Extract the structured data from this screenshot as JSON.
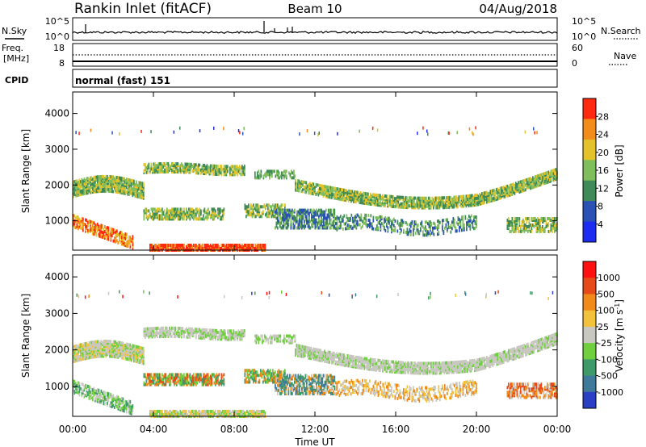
{
  "header": {
    "station": "Rankin Inlet (fitACF)",
    "beam": "Beam 10",
    "date": "04/Aug/2018"
  },
  "nsky_panel": {
    "left_label": "N.Sky",
    "right_label": "N.Search",
    "left_ticks": [
      "10^5",
      "10^0"
    ],
    "right_ticks": [
      "10^5",
      "10^0"
    ]
  },
  "freq_panel": {
    "left_label_1": "Freq.",
    "left_label_2": "[MHz]",
    "right_label": "Nave",
    "left_ticks": [
      "18",
      "8"
    ],
    "right_ticks": [
      "60",
      "0"
    ]
  },
  "cpid_panel": {
    "label": "CPID",
    "value": "normal (fast) 151"
  },
  "chart_data": [
    {
      "type": "heatmap",
      "parameter": "Power",
      "ylabel": "Slant Range [km]",
      "ylim": [
        180,
        4600
      ],
      "yticks": [
        "4000",
        "3000",
        "2000",
        "1000"
      ],
      "colorbar_label": "Power [dB]",
      "colorbar_ticks": [
        "28",
        "24",
        "20",
        "16",
        "12",
        "8",
        "4"
      ],
      "colorbar_range": [
        0,
        32
      ],
      "colors": [
        "#1e2bf0",
        "#2a52b5",
        "#3f8a56",
        "#7fbd5d",
        "#e3c22b",
        "#f28c1a",
        "#ff2a10"
      ],
      "xlim": [
        0,
        24
      ]
    },
    {
      "type": "heatmap",
      "parameter": "Velocity",
      "ylabel": "Slant Range [km]",
      "ylim": [
        180,
        4600
      ],
      "yticks": [
        "4000",
        "3000",
        "2000",
        "1000"
      ],
      "colorbar_label": "Velocity [m s^-1]",
      "colorbar_ticks": [
        "1000",
        "500",
        "100",
        "25",
        "-25",
        "-100",
        "-500",
        "-1000"
      ],
      "colors": [
        "#2a3fc4",
        "#3f7a9b",
        "#3f9a6a",
        "#6fcf3f",
        "#c8c8c0",
        "#f2c23a",
        "#f08a1a",
        "#e64a19",
        "#ff1010"
      ],
      "xlim": [
        0,
        24
      ]
    }
  ],
  "time_axis": {
    "ticks": [
      "00:00",
      "04:00",
      "08:00",
      "12:00",
      "16:00",
      "20:00",
      "00:00"
    ],
    "label": "Time UT"
  }
}
